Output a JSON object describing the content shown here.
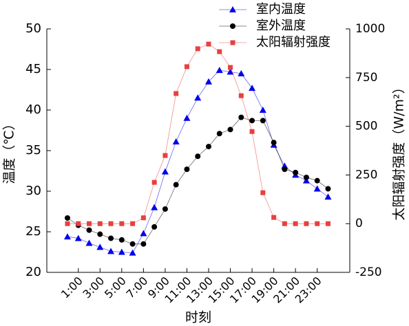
{
  "chart_data": {
    "type": "line",
    "x": [
      0,
      1,
      2,
      3,
      4,
      5,
      6,
      7,
      8,
      9,
      10,
      11,
      12,
      13,
      14,
      15,
      16,
      17,
      18,
      19,
      20,
      21,
      22,
      23,
      24
    ],
    "xlabel": "时刻",
    "ylabel": "温度（℃）",
    "y2label": "太阳辐射强度（W/m²）",
    "xlim": [
      -1.9,
      26
    ],
    "xticks": [
      {
        "value": 1,
        "label": "1:00"
      },
      {
        "value": 3,
        "label": "3:00"
      },
      {
        "value": 5,
        "label": "5:00"
      },
      {
        "value": 7,
        "label": "7:00"
      },
      {
        "value": 9,
        "label": "9:00"
      },
      {
        "value": 11,
        "label": "11:00"
      },
      {
        "value": 13,
        "label": "13:00"
      },
      {
        "value": 15,
        "label": "15:00"
      },
      {
        "value": 17,
        "label": "17:00"
      },
      {
        "value": 19,
        "label": "19:00"
      },
      {
        "value": 21,
        "label": "21:00"
      },
      {
        "value": 23,
        "label": "23:00"
      }
    ],
    "ylim": [
      20,
      50
    ],
    "yticks": [
      20,
      25,
      30,
      35,
      40,
      45,
      50
    ],
    "y2lim": [
      -250,
      1000
    ],
    "y2ticks": [
      -250,
      0,
      250,
      500,
      750,
      1000
    ],
    "series": [
      {
        "name": "室内温度",
        "color": "#0000ee",
        "marker": "triangle",
        "values": [
          24.4,
          24.2,
          23.6,
          23.1,
          22.6,
          22.5,
          22.4,
          24.8,
          28.0,
          32.4,
          36.1,
          39.0,
          41.5,
          43.5,
          44.9,
          44.7,
          44.5,
          42.7,
          40.0,
          35.7,
          33.1,
          32.0,
          31.3,
          30.3,
          29.3
        ]
      },
      {
        "name": "室外温度",
        "color": "#000000",
        "marker": "circle",
        "values": [
          26.7,
          25.8,
          25.2,
          24.7,
          24.2,
          24.0,
          23.5,
          23.5,
          25.6,
          27.8,
          30.8,
          32.7,
          34.3,
          35.5,
          37.1,
          37.6,
          39.1,
          38.7,
          38.7,
          36.0,
          32.7,
          32.3,
          31.7,
          31.3,
          30.3
        ]
      },
      {
        "name": "太阳辐射强度",
        "color": "#e84040",
        "marker": "square",
        "axis": "y2",
        "values": [
          0,
          0,
          0,
          0,
          0,
          0,
          0,
          30,
          212,
          350,
          668,
          806,
          898,
          922,
          883,
          802,
          657,
          473,
          159,
          32,
          0,
          0,
          0,
          0,
          0
        ]
      }
    ],
    "legend": "upper right"
  }
}
